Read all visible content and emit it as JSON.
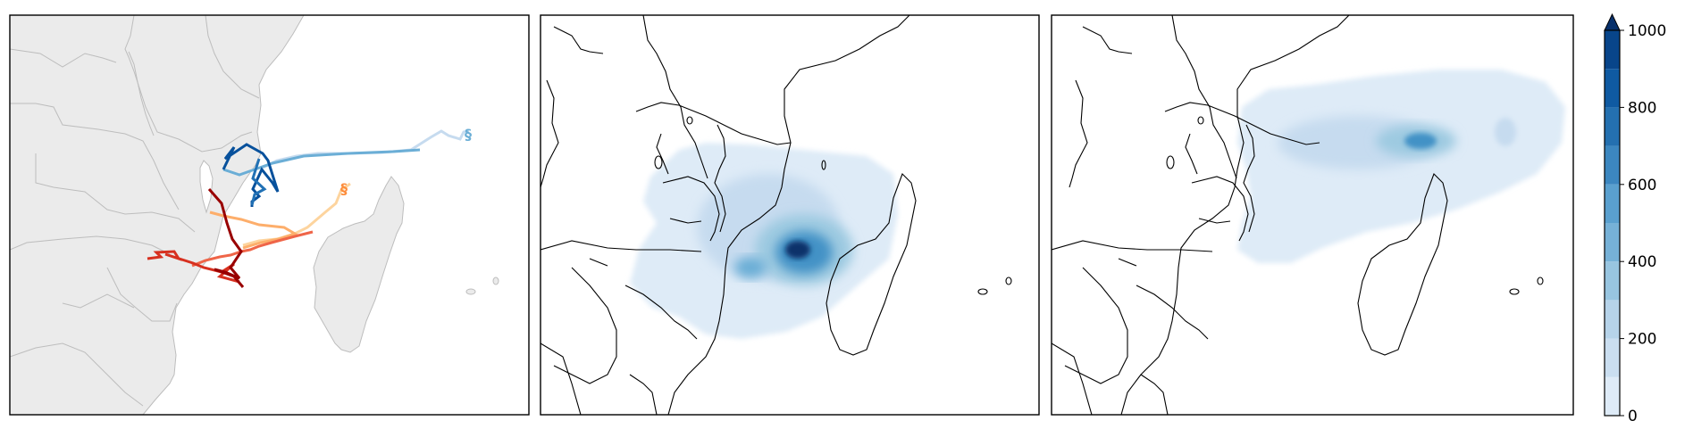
{
  "figure": {
    "panels": [
      {
        "id": "tracks",
        "kind": "storm-tracks"
      },
      {
        "id": "density-a",
        "kind": "rain-density"
      },
      {
        "id": "density-b",
        "kind": "rain-density"
      }
    ]
  },
  "colors": {
    "land": "#ebebeb",
    "border": "#bdbdbd",
    "coast_line": "#000000",
    "track_light_blue": "#9ecae1",
    "track_blue": "#4292c6",
    "track_dark_blue": "#08519c",
    "track_light_orange": "#fdd49e",
    "track_orange": "#fdae6b",
    "track_red_orange": "#ef6548",
    "track_red": "#d7301f",
    "track_dark_red": "#990000"
  },
  "colorbar": {
    "ticks": [
      "0",
      "200",
      "400",
      "600",
      "800",
      "1000"
    ],
    "tick_values": [
      0,
      200,
      400,
      600,
      800,
      1000
    ],
    "extend": "max",
    "levels": [
      0,
      100,
      200,
      300,
      400,
      500,
      600,
      700,
      800,
      900,
      1000
    ],
    "colors": [
      "#deebf7",
      "#cadef0",
      "#b6d3e9",
      "#98c5e0",
      "#76b1d7",
      "#5aa0cf",
      "#3c87c0",
      "#2470b0",
      "#0f5aa2",
      "#08458a",
      "#08306b"
    ],
    "extend_color": "#08306b"
  }
}
